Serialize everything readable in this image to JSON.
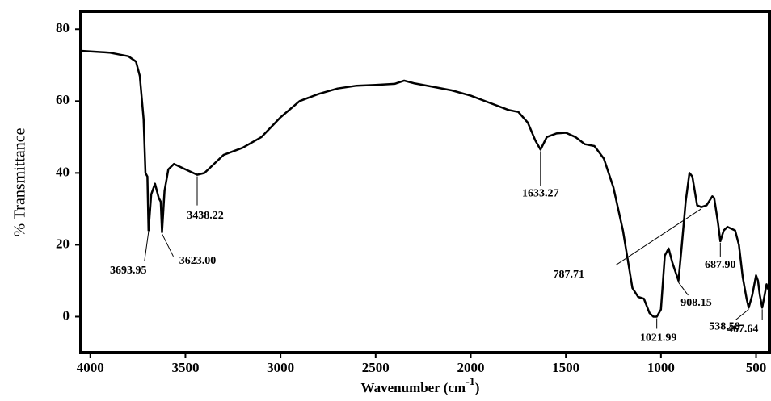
{
  "chart_data": {
    "type": "line",
    "color": "#000000",
    "xlabel": {
      "text": "Wavenumber (cm",
      "superscript": "-1",
      "suffix": ")"
    },
    "ylabel": "% Transmittance",
    "xlim": [
      4050,
      430
    ],
    "ylim": [
      -10,
      85
    ],
    "xticks": [
      4000,
      3500,
      3000,
      2500,
      2000,
      1500,
      1000,
      500
    ],
    "yticks": [
      0,
      20,
      40,
      60,
      80
    ],
    "x": [
      4050,
      3900,
      3800,
      3760,
      3740,
      3720,
      3710,
      3700,
      3693.95,
      3680,
      3660,
      3640,
      3630,
      3623,
      3610,
      3590,
      3560,
      3500,
      3438.22,
      3400,
      3300,
      3200,
      3100,
      3000,
      2900,
      2800,
      2700,
      2600,
      2500,
      2400,
      2350,
      2300,
      2200,
      2100,
      2000,
      1900,
      1800,
      1750,
      1700,
      1660,
      1633.27,
      1600,
      1550,
      1500,
      1450,
      1400,
      1350,
      1300,
      1250,
      1200,
      1150,
      1120,
      1090,
      1060,
      1040,
      1021.99,
      1000,
      980,
      960,
      940,
      908.15,
      890,
      870,
      850,
      835,
      810,
      787.71,
      760,
      730,
      720,
      700,
      687.9,
      670,
      650,
      610,
      590,
      570,
      550,
      538.58,
      520,
      500,
      490,
      480,
      467.64,
      455,
      445,
      435
    ],
    "values": [
      74,
      73.5,
      72.5,
      71,
      67,
      55,
      40,
      39,
      24,
      34,
      37,
      33,
      32,
      23.5,
      35,
      41,
      42.5,
      41,
      39.5,
      40,
      45,
      47,
      50,
      55.5,
      60,
      62,
      63.5,
      64.3,
      64.5,
      64.8,
      65.7,
      65,
      64,
      63,
      61.5,
      59.5,
      57.5,
      57,
      54,
      49,
      46.5,
      50,
      51,
      51.2,
      50,
      48,
      47.5,
      44,
      36,
      24,
      8,
      5.5,
      5,
      1,
      0,
      0,
      2,
      17,
      19,
      15,
      10,
      20,
      32,
      40,
      39,
      31,
      30.5,
      31,
      33.5,
      33,
      26,
      21,
      24,
      25,
      24,
      20,
      11,
      5,
      2.5,
      6,
      11.5,
      10,
      6,
      2.5,
      6,
      9,
      7.5
    ],
    "peaks": {
      "x": [
        3693.95,
        3623.0,
        3438.22,
        1633.27,
        1021.99,
        908.15,
        787.71,
        687.9,
        538.58,
        467.64
      ],
      "labels": [
        "3693.95",
        "3623.00",
        "3438.22",
        "1633.27",
        "1021.99",
        "908.15",
        "787.71",
        "687.90",
        "538.58",
        "467.64"
      ]
    }
  }
}
